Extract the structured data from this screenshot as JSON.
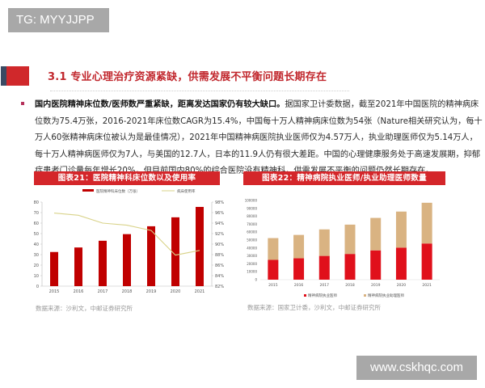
{
  "watermarks": {
    "top": "TG: MYYJJPP",
    "bottom": "www.cskhqc.com"
  },
  "section": {
    "title": "3.1 专业心理治疗资源紧缺，供需发展不平衡问题长期存在"
  },
  "paragraph": {
    "lead_bold": "国内医院精神床位数/医师数严重紧缺，距离发达国家仍有较大缺口。",
    "body": "据国家卫计委数据，截至2021年中国医院的精神病床位数为75.4万张，2016-2021年床位数CAGR为15.4%，中国每十万人精神病床位数为54张（Nature相关研究认为，每十万人60张精神病床位被认为是最佳情况），2021年中国精神病医院执业医师仅为4.57万人，执业助理医师仅为5.14万人，每十万人精神病医师仅为7人，与美国的12.7人，日本的11.9人仍有很大差距。中国的心理健康服务处于高速发展期，抑郁症患者门诊量每年增长20%，但目前国内80%的综合医院没有精神科，供需发展不平衡的问题仍然长期存在。"
  },
  "figures": {
    "left": {
      "title": "图表21：医院精神科床位数以及使用率",
      "source": "数据来源：沙利文，中邮证券研究所"
    },
    "right": {
      "title": "图表22：精神病院执业医师/执业助理医师数量",
      "source": "数据来源：国家卫计委，沙利文，中邮证券研究所"
    }
  },
  "chart_data": [
    {
      "type": "bar",
      "title": "图表21：医院精神科床位数以及使用率",
      "categories": [
        "2015",
        "2016",
        "2017",
        "2018",
        "2019",
        "2020",
        "2021"
      ],
      "series": [
        {
          "name": "医院精神科床位数（万张）",
          "type": "bar",
          "axis": "left",
          "color": "#c00000",
          "values": [
            32.5,
            36.8,
            43.2,
            49.5,
            57.0,
            65.5,
            75.4
          ]
        },
        {
          "name": "病床使用率",
          "type": "line",
          "axis": "right",
          "color": "#d9d38a",
          "values": [
            95.9,
            95.5,
            94.0,
            93.6,
            92.6,
            87.9,
            88.8
          ]
        }
      ],
      "ylim_left": [
        0,
        80
      ],
      "yticks_left": [
        0,
        10,
        20,
        30,
        40,
        50,
        60,
        70,
        80
      ],
      "ylim_right": [
        82,
        98
      ],
      "yticks_right": [
        "82%",
        "84%",
        "86%",
        "88%",
        "90%",
        "92%",
        "94%",
        "96%",
        "98%"
      ],
      "legend_position": "top",
      "grid": false
    },
    {
      "type": "bar",
      "stacked": true,
      "title": "图表22：精神病院执业医师/执业助理医师数量",
      "categories": [
        "2015",
        "2016",
        "2017",
        "2018",
        "2019",
        "2020",
        "2021"
      ],
      "series": [
        {
          "name": "精神病院执业医师",
          "color": "#e0101b",
          "values": [
            25000,
            27000,
            30000,
            32500,
            37000,
            40500,
            45700
          ]
        },
        {
          "name": "精神病院执业助理医师",
          "color": "#d9b382",
          "values": [
            27500,
            29500,
            33500,
            37000,
            41000,
            45500,
            51400
          ]
        }
      ],
      "totals": [
        52500,
        56500,
        63500,
        69500,
        78000,
        86000,
        97100
      ],
      "ylim": [
        0,
        100000
      ],
      "yticks": [
        0,
        10000,
        20000,
        30000,
        40000,
        50000,
        60000,
        70000,
        80000,
        90000,
        100000
      ],
      "legend_position": "bottom",
      "grid": false
    }
  ]
}
